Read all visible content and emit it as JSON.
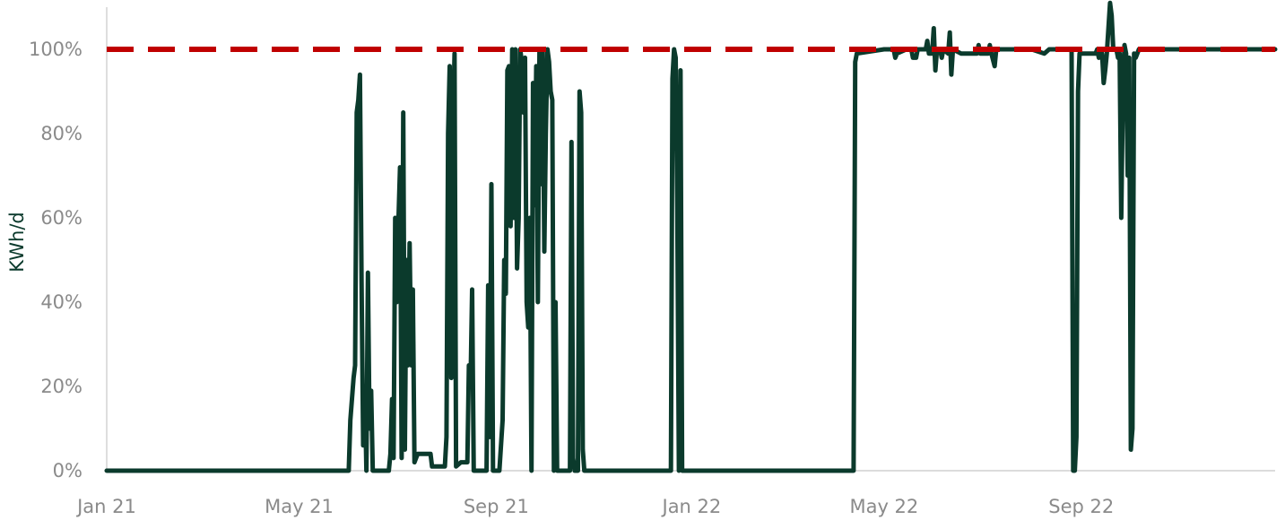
{
  "chart_data": {
    "type": "line",
    "title": "",
    "xlabel": "",
    "ylabel": "KWh/d",
    "y_unit": "%",
    "ylim": [
      0,
      110
    ],
    "xlim": [
      "2021-01-01",
      "2022-12-31"
    ],
    "y_ticks": [
      0,
      20,
      40,
      60,
      80,
      100
    ],
    "y_tick_labels": [
      "0%",
      "20%",
      "40%",
      "60%",
      "80%",
      "100%"
    ],
    "x_ticks": [
      "2021-01-01",
      "2021-05-01",
      "2021-09-01",
      "2022-01-01",
      "2022-05-01",
      "2022-09-01"
    ],
    "x_tick_labels": [
      "Jan 21",
      "May 21",
      "Sep 21",
      "Jan 22",
      "May 22",
      "Sep 22"
    ],
    "grid": false,
    "legend": "none",
    "colors": {
      "series": "#0b3a2c",
      "reference": "#c00000",
      "axis": "#c8c8c8",
      "tick_text": "#8a8a8a"
    },
    "reference_line": {
      "y": 100,
      "style": "dashed"
    },
    "series": [
      {
        "values": [
          [
            "2021-01-01",
            0
          ],
          [
            "2021-06-01",
            0
          ],
          [
            "2021-06-02",
            12
          ],
          [
            "2021-06-04",
            22
          ],
          [
            "2021-06-05",
            25
          ],
          [
            "2021-06-06",
            85
          ],
          [
            "2021-06-07",
            88
          ],
          [
            "2021-06-08",
            94
          ],
          [
            "2021-06-09",
            45
          ],
          [
            "2021-06-10",
            6
          ],
          [
            "2021-06-11",
            20
          ],
          [
            "2021-06-12",
            0
          ],
          [
            "2021-06-13",
            47
          ],
          [
            "2021-06-14",
            10
          ],
          [
            "2021-06-15",
            19
          ],
          [
            "2021-06-16",
            0
          ],
          [
            "2021-06-26",
            0
          ],
          [
            "2021-06-27",
            4
          ],
          [
            "2021-06-28",
            17
          ],
          [
            "2021-06-29",
            3
          ],
          [
            "2021-06-30",
            60
          ],
          [
            "2021-07-01",
            40
          ],
          [
            "2021-07-02",
            59
          ],
          [
            "2021-07-03",
            72
          ],
          [
            "2021-07-04",
            3
          ],
          [
            "2021-07-05",
            85
          ],
          [
            "2021-07-06",
            5
          ],
          [
            "2021-07-07",
            50
          ],
          [
            "2021-07-08",
            25
          ],
          [
            "2021-07-09",
            54
          ],
          [
            "2021-07-10",
            25
          ],
          [
            "2021-07-11",
            43
          ],
          [
            "2021-07-12",
            2
          ],
          [
            "2021-07-14",
            4
          ],
          [
            "2021-07-18",
            4
          ],
          [
            "2021-07-22",
            4
          ],
          [
            "2021-07-23",
            1
          ],
          [
            "2021-07-31",
            1
          ],
          [
            "2021-08-01",
            8
          ],
          [
            "2021-08-02",
            80
          ],
          [
            "2021-08-03",
            96
          ],
          [
            "2021-08-04",
            22
          ],
          [
            "2021-08-05",
            80
          ],
          [
            "2021-08-06",
            99
          ],
          [
            "2021-08-07",
            1
          ],
          [
            "2021-08-10",
            2
          ],
          [
            "2021-08-14",
            2
          ],
          [
            "2021-08-15",
            25
          ],
          [
            "2021-08-16",
            20
          ],
          [
            "2021-08-17",
            43
          ],
          [
            "2021-08-18",
            0
          ],
          [
            "2021-08-26",
            0
          ],
          [
            "2021-08-27",
            44
          ],
          [
            "2021-08-28",
            8
          ],
          [
            "2021-08-29",
            68
          ],
          [
            "2021-08-30",
            0
          ],
          [
            "2021-09-03",
            0
          ],
          [
            "2021-09-05",
            12
          ],
          [
            "2021-09-06",
            50
          ],
          [
            "2021-09-07",
            42
          ],
          [
            "2021-09-08",
            95
          ],
          [
            "2021-09-09",
            96
          ],
          [
            "2021-09-10",
            58
          ],
          [
            "2021-09-11",
            100
          ],
          [
            "2021-09-12",
            60
          ],
          [
            "2021-09-13",
            100
          ],
          [
            "2021-09-14",
            48
          ],
          [
            "2021-09-15",
            60
          ],
          [
            "2021-09-16",
            100
          ],
          [
            "2021-09-17",
            97
          ],
          [
            "2021-09-18",
            85
          ],
          [
            "2021-09-19",
            98
          ],
          [
            "2021-09-20",
            40
          ],
          [
            "2021-09-21",
            34
          ],
          [
            "2021-09-22",
            60
          ],
          [
            "2021-09-23",
            0
          ],
          [
            "2021-09-24",
            92
          ],
          [
            "2021-09-25",
            63
          ],
          [
            "2021-09-26",
            96
          ],
          [
            "2021-09-27",
            40
          ],
          [
            "2021-09-28",
            100
          ],
          [
            "2021-09-29",
            68
          ],
          [
            "2021-09-30",
            100
          ],
          [
            "2021-10-01",
            52
          ],
          [
            "2021-10-02",
            80
          ],
          [
            "2021-10-03",
            100
          ],
          [
            "2021-10-04",
            97
          ],
          [
            "2021-10-05",
            90
          ],
          [
            "2021-10-06",
            88
          ],
          [
            "2021-10-07",
            0
          ],
          [
            "2021-10-08",
            40
          ],
          [
            "2021-10-09",
            0
          ],
          [
            "2021-10-17",
            0
          ],
          [
            "2021-10-18",
            78
          ],
          [
            "2021-10-19",
            3
          ],
          [
            "2021-10-20",
            0
          ],
          [
            "2021-10-22",
            0
          ],
          [
            "2021-10-23",
            90
          ],
          [
            "2021-10-24",
            85
          ],
          [
            "2021-10-25",
            5
          ],
          [
            "2021-10-26",
            0
          ],
          [
            "2021-12-19",
            0
          ],
          [
            "2021-12-20",
            93
          ],
          [
            "2021-12-21",
            100
          ],
          [
            "2021-12-22",
            98
          ],
          [
            "2021-12-23",
            62
          ],
          [
            "2021-12-24",
            0
          ],
          [
            "2021-12-25",
            95
          ],
          [
            "2021-12-26",
            0
          ],
          [
            "2022-04-12",
            0
          ],
          [
            "2022-04-13",
            97
          ],
          [
            "2022-04-14",
            99
          ],
          [
            "2022-05-01",
            100
          ],
          [
            "2022-05-07",
            100
          ],
          [
            "2022-05-08",
            98
          ],
          [
            "2022-05-09",
            99
          ],
          [
            "2022-05-15",
            100
          ],
          [
            "2022-05-18",
            100
          ],
          [
            "2022-05-19",
            98
          ],
          [
            "2022-05-21",
            98
          ],
          [
            "2022-05-22",
            100
          ],
          [
            "2022-05-27",
            100
          ],
          [
            "2022-05-28",
            102
          ],
          [
            "2022-05-29",
            99
          ],
          [
            "2022-05-31",
            99
          ],
          [
            "2022-06-01",
            105
          ],
          [
            "2022-06-02",
            95
          ],
          [
            "2022-06-03",
            100
          ],
          [
            "2022-06-05",
            100
          ],
          [
            "2022-06-06",
            98
          ],
          [
            "2022-06-07",
            100
          ],
          [
            "2022-06-10",
            99
          ],
          [
            "2022-06-11",
            104
          ],
          [
            "2022-06-12",
            94
          ],
          [
            "2022-06-13",
            100
          ],
          [
            "2022-06-18",
            99
          ],
          [
            "2022-06-25",
            99
          ],
          [
            "2022-06-28",
            99
          ],
          [
            "2022-06-29",
            101
          ],
          [
            "2022-06-30",
            99
          ],
          [
            "2022-07-05",
            99
          ],
          [
            "2022-07-06",
            101
          ],
          [
            "2022-07-07",
            99
          ],
          [
            "2022-07-09",
            96
          ],
          [
            "2022-07-10",
            100
          ],
          [
            "2022-07-15",
            100
          ],
          [
            "2022-08-01",
            100
          ],
          [
            "2022-08-09",
            99
          ],
          [
            "2022-08-12",
            100
          ],
          [
            "2022-08-26",
            100
          ],
          [
            "2022-08-27",
            0
          ],
          [
            "2022-08-28",
            0
          ],
          [
            "2022-08-29",
            8
          ],
          [
            "2022-08-30",
            90
          ],
          [
            "2022-08-31",
            99
          ],
          [
            "2022-09-10",
            99
          ],
          [
            "2022-09-11",
            100
          ],
          [
            "2022-09-12",
            98
          ],
          [
            "2022-09-13",
            100
          ],
          [
            "2022-09-14",
            99
          ],
          [
            "2022-09-15",
            92
          ],
          [
            "2022-09-16",
            95
          ],
          [
            "2022-09-17",
            99
          ],
          [
            "2022-09-18",
            105
          ],
          [
            "2022-09-19",
            111
          ],
          [
            "2022-09-20",
            108
          ],
          [
            "2022-09-21",
            100
          ],
          [
            "2022-09-23",
            100
          ],
          [
            "2022-09-24",
            98
          ],
          [
            "2022-09-25",
            99
          ],
          [
            "2022-09-26",
            60
          ],
          [
            "2022-09-27",
            90
          ],
          [
            "2022-09-28",
            101
          ],
          [
            "2022-09-29",
            99
          ],
          [
            "2022-09-30",
            70
          ],
          [
            "2022-10-01",
            98
          ],
          [
            "2022-10-02",
            5
          ],
          [
            "2022-10-03",
            10
          ],
          [
            "2022-10-04",
            99
          ],
          [
            "2022-10-05",
            98
          ],
          [
            "2022-10-06",
            99
          ],
          [
            "2022-10-07",
            100
          ],
          [
            "2022-12-31",
            100
          ]
        ]
      }
    ]
  }
}
